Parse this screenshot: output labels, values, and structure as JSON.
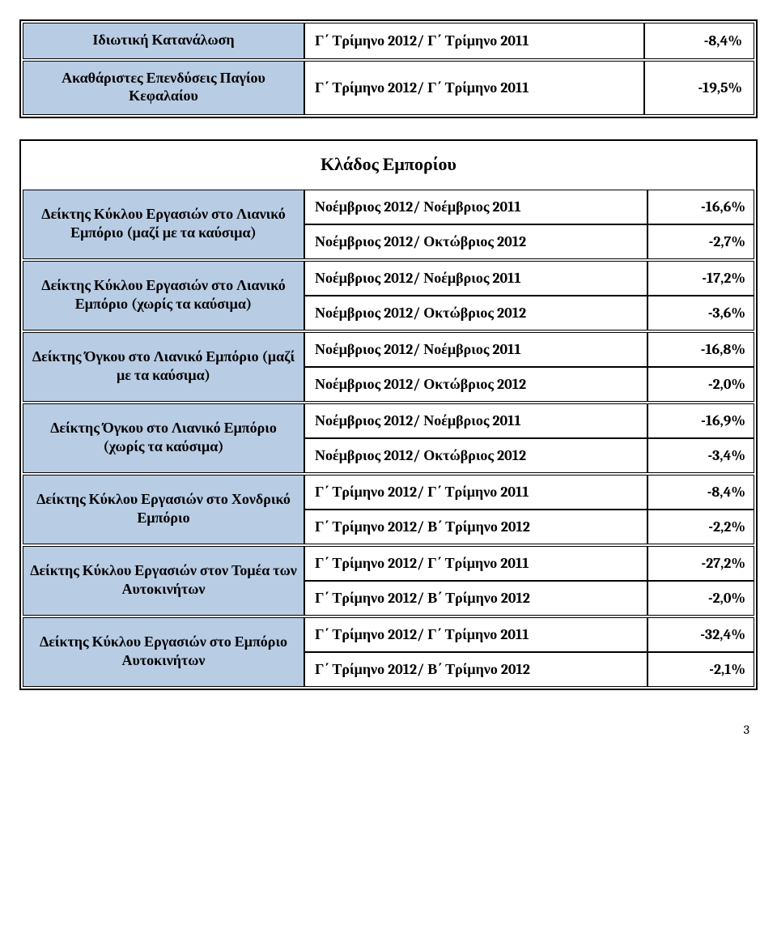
{
  "table1": {
    "rows": [
      {
        "label": "Ιδιωτική Κατανάλωση",
        "period": "Γ΄ Τρίμηνο 2012/ Γ΄ Τρίμηνο 2011",
        "value": "-8,4%"
      },
      {
        "label": "Ακαθάριστες Επενδύσεις Παγίου Κεφαλαίου",
        "period": "Γ΄ Τρίμηνο 2012/ Γ΄ Τρίμηνο 2011",
        "value": "-19,5%"
      }
    ]
  },
  "table2": {
    "title": "Κλάδος Εμπορίου",
    "rows": [
      {
        "label": "Δείκτης Κύκλου Εργασιών στο Λιανικό Εμπόριο  (μαζί με τα  καύσιμα)",
        "sub": [
          {
            "period": "Νοέμβριος 2012/ Νοέμβριος  2011",
            "value": "-16,6%"
          },
          {
            "period": "Νοέμβριος 2012/ Οκτώβριος 2012",
            "value": "-2,7%"
          }
        ]
      },
      {
        "label": "Δείκτης Κύκλου Εργασιών στο Λιανικό Εμπόριο  (χωρίς τα  καύσιμα)",
        "sub": [
          {
            "period": "Νοέμβριος 2012/ Νοέμβριος  2011",
            "value": "-17,2%"
          },
          {
            "period": "Νοέμβριος 2012/ Οκτώβριος 2012",
            "value": "-3,6%"
          }
        ]
      },
      {
        "label": "Δείκτης Όγκου στο Λιανικό Εμπόριο (μαζί με τα καύσιμα)",
        "sub": [
          {
            "period": "Νοέμβριος 2012/ Νοέμβριος  2011",
            "value": "-16,8%"
          },
          {
            "period": "Νοέμβριος 2012/ Οκτώβριος 2012",
            "value": "-2,0%"
          }
        ]
      },
      {
        "label": "Δείκτης Όγκου στο Λιανικό Εμπόριο (χωρίς τα καύσιμα)",
        "sub": [
          {
            "period": "Νοέμβριος 2012/ Νοέμβριος  2011",
            "value": "-16,9%"
          },
          {
            "period": "Νοέμβριος 2012/ Οκτώβριος 2012",
            "value": "-3,4%"
          }
        ]
      },
      {
        "label": "Δείκτης Κύκλου Εργασιών στο Χονδρικό Εμπόριο",
        "sub": [
          {
            "period": "Γ΄ Τρίμηνο 2012/ Γ΄ Τρίμηνο 2011",
            "value": "-8,4%"
          },
          {
            "period": "Γ΄ Τρίμηνο 2012/ Β΄ Τρίμηνο 2012",
            "value": "-2,2%"
          }
        ]
      },
      {
        "label": "Δείκτης Κύκλου Εργασιών στον Τομέα των Αυτοκινήτων",
        "sub": [
          {
            "period": "Γ΄ Τρίμηνο 2012/ Γ΄ Τρίμηνο 2011",
            "value": "-27,2%"
          },
          {
            "period": "Γ΄ Τρίμηνο 2012/ Β΄ Τρίμηνο 2012",
            "value": "-2,0%"
          }
        ]
      },
      {
        "label": "Δείκτης Κύκλου Εργασιών στο Εμπόριο Αυτοκινήτων",
        "sub": [
          {
            "period": "Γ΄ Τρίμηνο 2012/ Γ΄ Τρίμηνο 2011",
            "value": "-32,4%"
          },
          {
            "period": "Γ΄ Τρίμηνο 2012/ Β΄ Τρίμηνο 2012",
            "value": "-2,1%"
          }
        ]
      }
    ]
  },
  "page_number": "3",
  "colors": {
    "header_bg": "#b8cce4",
    "border": "#000000",
    "page_bg": "#ffffff"
  }
}
